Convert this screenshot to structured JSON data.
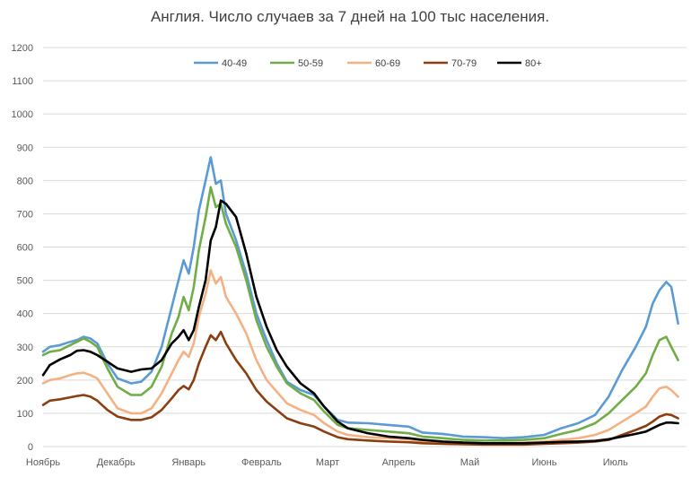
{
  "chart_data": {
    "type": "line",
    "title": "Англия. Число случаев за 7 дней на 100 тыс населения.",
    "xlabel": "",
    "ylabel": "",
    "ylim": [
      0,
      1200
    ],
    "yticks": [
      0,
      100,
      200,
      300,
      400,
      500,
      600,
      700,
      800,
      900,
      1000,
      1100,
      1200
    ],
    "grid": true,
    "legend_position": "top",
    "x_range": [
      0,
      19
    ],
    "months": [
      {
        "label": "Ноябрь",
        "x": 0
      },
      {
        "label": "Декабрь",
        "x": 2.15
      },
      {
        "label": "Январь",
        "x": 4.3
      },
      {
        "label": "Февраль",
        "x": 6.45
      },
      {
        "label": "Март",
        "x": 8.4
      },
      {
        "label": "Апрель",
        "x": 10.5
      },
      {
        "label": "Май",
        "x": 12.6
      },
      {
        "label": "Июнь",
        "x": 14.8
      },
      {
        "label": "Июль",
        "x": 16.9
      }
    ],
    "series": [
      {
        "name": "40-49",
        "color": "#5b9bd5",
        "points": [
          [
            0,
            285
          ],
          [
            0.2,
            300
          ],
          [
            0.5,
            305
          ],
          [
            0.8,
            315
          ],
          [
            1.0,
            320
          ],
          [
            1.2,
            330
          ],
          [
            1.4,
            325
          ],
          [
            1.6,
            310
          ],
          [
            1.9,
            250
          ],
          [
            2.2,
            205
          ],
          [
            2.6,
            190
          ],
          [
            2.9,
            195
          ],
          [
            3.2,
            225
          ],
          [
            3.5,
            300
          ],
          [
            3.8,
            420
          ],
          [
            4.0,
            500
          ],
          [
            4.15,
            560
          ],
          [
            4.3,
            520
          ],
          [
            4.45,
            600
          ],
          [
            4.6,
            710
          ],
          [
            4.8,
            800
          ],
          [
            4.95,
            870
          ],
          [
            5.1,
            790
          ],
          [
            5.25,
            800
          ],
          [
            5.4,
            700
          ],
          [
            5.7,
            620
          ],
          [
            6.0,
            520
          ],
          [
            6.3,
            400
          ],
          [
            6.6,
            320
          ],
          [
            6.9,
            250
          ],
          [
            7.2,
            195
          ],
          [
            7.6,
            170
          ],
          [
            8.0,
            155
          ],
          [
            8.3,
            120
          ],
          [
            8.7,
            80
          ],
          [
            9.0,
            72
          ],
          [
            9.6,
            70
          ],
          [
            10.2,
            65
          ],
          [
            10.8,
            60
          ],
          [
            11.2,
            42
          ],
          [
            11.8,
            38
          ],
          [
            12.4,
            30
          ],
          [
            13.0,
            28
          ],
          [
            13.6,
            25
          ],
          [
            14.2,
            28
          ],
          [
            14.8,
            35
          ],
          [
            15.3,
            55
          ],
          [
            15.8,
            70
          ],
          [
            16.3,
            95
          ],
          [
            16.7,
            150
          ],
          [
            17.1,
            230
          ],
          [
            17.5,
            300
          ],
          [
            17.8,
            360
          ],
          [
            18.0,
            430
          ],
          [
            18.2,
            470
          ],
          [
            18.4,
            495
          ],
          [
            18.55,
            480
          ],
          [
            18.75,
            370
          ]
        ]
      },
      {
        "name": "50-59",
        "color": "#70ad47",
        "points": [
          [
            0,
            275
          ],
          [
            0.2,
            285
          ],
          [
            0.5,
            290
          ],
          [
            0.8,
            305
          ],
          [
            1.0,
            315
          ],
          [
            1.2,
            325
          ],
          [
            1.4,
            315
          ],
          [
            1.6,
            300
          ],
          [
            1.9,
            235
          ],
          [
            2.2,
            180
          ],
          [
            2.6,
            155
          ],
          [
            2.9,
            155
          ],
          [
            3.2,
            180
          ],
          [
            3.5,
            240
          ],
          [
            3.8,
            340
          ],
          [
            4.0,
            390
          ],
          [
            4.15,
            450
          ],
          [
            4.3,
            410
          ],
          [
            4.45,
            480
          ],
          [
            4.6,
            590
          ],
          [
            4.8,
            690
          ],
          [
            4.95,
            780
          ],
          [
            5.1,
            720
          ],
          [
            5.25,
            730
          ],
          [
            5.4,
            670
          ],
          [
            5.7,
            600
          ],
          [
            6.0,
            500
          ],
          [
            6.3,
            380
          ],
          [
            6.6,
            300
          ],
          [
            6.9,
            240
          ],
          [
            7.2,
            190
          ],
          [
            7.6,
            160
          ],
          [
            8.0,
            140
          ],
          [
            8.3,
            105
          ],
          [
            8.7,
            65
          ],
          [
            9.0,
            55
          ],
          [
            9.6,
            50
          ],
          [
            10.2,
            45
          ],
          [
            10.8,
            40
          ],
          [
            11.2,
            30
          ],
          [
            11.8,
            25
          ],
          [
            12.4,
            20
          ],
          [
            13.0,
            18
          ],
          [
            13.6,
            18
          ],
          [
            14.2,
            20
          ],
          [
            14.8,
            25
          ],
          [
            15.3,
            38
          ],
          [
            15.8,
            50
          ],
          [
            16.3,
            70
          ],
          [
            16.7,
            100
          ],
          [
            17.1,
            140
          ],
          [
            17.5,
            180
          ],
          [
            17.8,
            220
          ],
          [
            18.0,
            275
          ],
          [
            18.2,
            320
          ],
          [
            18.4,
            330
          ],
          [
            18.55,
            300
          ],
          [
            18.75,
            260
          ]
        ]
      },
      {
        "name": "60-69",
        "color": "#f4b183",
        "points": [
          [
            0,
            190
          ],
          [
            0.2,
            200
          ],
          [
            0.5,
            205
          ],
          [
            0.8,
            215
          ],
          [
            1.0,
            220
          ],
          [
            1.2,
            222
          ],
          [
            1.4,
            215
          ],
          [
            1.6,
            205
          ],
          [
            1.9,
            160
          ],
          [
            2.2,
            115
          ],
          [
            2.6,
            100
          ],
          [
            2.9,
            100
          ],
          [
            3.2,
            115
          ],
          [
            3.5,
            160
          ],
          [
            3.8,
            220
          ],
          [
            4.0,
            260
          ],
          [
            4.15,
            285
          ],
          [
            4.3,
            270
          ],
          [
            4.45,
            310
          ],
          [
            4.6,
            390
          ],
          [
            4.8,
            460
          ],
          [
            4.95,
            530
          ],
          [
            5.1,
            490
          ],
          [
            5.25,
            510
          ],
          [
            5.4,
            450
          ],
          [
            5.7,
            400
          ],
          [
            6.0,
            340
          ],
          [
            6.3,
            260
          ],
          [
            6.6,
            200
          ],
          [
            6.9,
            165
          ],
          [
            7.2,
            130
          ],
          [
            7.6,
            110
          ],
          [
            8.0,
            95
          ],
          [
            8.3,
            70
          ],
          [
            8.7,
            45
          ],
          [
            9.0,
            35
          ],
          [
            9.6,
            28
          ],
          [
            10.2,
            25
          ],
          [
            10.8,
            22
          ],
          [
            11.2,
            15
          ],
          [
            11.8,
            12
          ],
          [
            12.4,
            12
          ],
          [
            13.0,
            10
          ],
          [
            13.6,
            10
          ],
          [
            14.2,
            12
          ],
          [
            14.8,
            15
          ],
          [
            15.3,
            20
          ],
          [
            15.8,
            25
          ],
          [
            16.3,
            35
          ],
          [
            16.7,
            50
          ],
          [
            17.1,
            75
          ],
          [
            17.5,
            100
          ],
          [
            17.8,
            120
          ],
          [
            18.0,
            150
          ],
          [
            18.2,
            175
          ],
          [
            18.4,
            180
          ],
          [
            18.55,
            170
          ],
          [
            18.75,
            150
          ]
        ]
      },
      {
        "name": "70-79",
        "color": "#8b3e10",
        "points": [
          [
            0,
            125
          ],
          [
            0.2,
            138
          ],
          [
            0.5,
            142
          ],
          [
            0.8,
            148
          ],
          [
            1.0,
            152
          ],
          [
            1.2,
            155
          ],
          [
            1.4,
            150
          ],
          [
            1.6,
            138
          ],
          [
            1.9,
            110
          ],
          [
            2.2,
            90
          ],
          [
            2.6,
            80
          ],
          [
            2.9,
            80
          ],
          [
            3.2,
            88
          ],
          [
            3.5,
            110
          ],
          [
            3.8,
            145
          ],
          [
            4.0,
            170
          ],
          [
            4.15,
            182
          ],
          [
            4.3,
            172
          ],
          [
            4.45,
            200
          ],
          [
            4.6,
            250
          ],
          [
            4.8,
            300
          ],
          [
            4.95,
            335
          ],
          [
            5.1,
            320
          ],
          [
            5.25,
            345
          ],
          [
            5.4,
            310
          ],
          [
            5.7,
            260
          ],
          [
            6.0,
            220
          ],
          [
            6.3,
            170
          ],
          [
            6.6,
            135
          ],
          [
            6.9,
            110
          ],
          [
            7.2,
            85
          ],
          [
            7.6,
            70
          ],
          [
            8.0,
            60
          ],
          [
            8.3,
            45
          ],
          [
            8.7,
            28
          ],
          [
            9.0,
            22
          ],
          [
            9.6,
            18
          ],
          [
            10.2,
            15
          ],
          [
            10.8,
            13
          ],
          [
            11.2,
            10
          ],
          [
            11.8,
            8
          ],
          [
            12.4,
            7
          ],
          [
            13.0,
            6
          ],
          [
            13.6,
            6
          ],
          [
            14.2,
            6
          ],
          [
            14.8,
            8
          ],
          [
            15.3,
            10
          ],
          [
            15.8,
            12
          ],
          [
            16.3,
            15
          ],
          [
            16.7,
            20
          ],
          [
            17.1,
            35
          ],
          [
            17.5,
            50
          ],
          [
            17.8,
            62
          ],
          [
            18.0,
            75
          ],
          [
            18.2,
            90
          ],
          [
            18.4,
            97
          ],
          [
            18.55,
            95
          ],
          [
            18.75,
            85
          ]
        ]
      },
      {
        "name": "80+",
        "color": "#000000",
        "points": [
          [
            0,
            215
          ],
          [
            0.2,
            245
          ],
          [
            0.5,
            262
          ],
          [
            0.8,
            275
          ],
          [
            1.0,
            288
          ],
          [
            1.2,
            290
          ],
          [
            1.4,
            285
          ],
          [
            1.6,
            275
          ],
          [
            1.9,
            255
          ],
          [
            2.2,
            235
          ],
          [
            2.6,
            225
          ],
          [
            2.9,
            232
          ],
          [
            3.2,
            235
          ],
          [
            3.5,
            260
          ],
          [
            3.8,
            310
          ],
          [
            4.0,
            330
          ],
          [
            4.15,
            350
          ],
          [
            4.3,
            320
          ],
          [
            4.45,
            350
          ],
          [
            4.6,
            420
          ],
          [
            4.8,
            500
          ],
          [
            4.95,
            620
          ],
          [
            5.1,
            660
          ],
          [
            5.25,
            740
          ],
          [
            5.4,
            730
          ],
          [
            5.7,
            690
          ],
          [
            6.0,
            580
          ],
          [
            6.3,
            450
          ],
          [
            6.6,
            360
          ],
          [
            6.9,
            290
          ],
          [
            7.2,
            240
          ],
          [
            7.6,
            190
          ],
          [
            8.0,
            160
          ],
          [
            8.3,
            120
          ],
          [
            8.7,
            75
          ],
          [
            9.0,
            55
          ],
          [
            9.6,
            40
          ],
          [
            10.2,
            30
          ],
          [
            10.8,
            25
          ],
          [
            11.2,
            20
          ],
          [
            11.8,
            15
          ],
          [
            12.4,
            12
          ],
          [
            13.0,
            10
          ],
          [
            13.6,
            10
          ],
          [
            14.2,
            10
          ],
          [
            14.8,
            12
          ],
          [
            15.3,
            14
          ],
          [
            15.8,
            15
          ],
          [
            16.3,
            17
          ],
          [
            16.7,
            22
          ],
          [
            17.1,
            30
          ],
          [
            17.5,
            38
          ],
          [
            17.8,
            45
          ],
          [
            18.0,
            55
          ],
          [
            18.2,
            65
          ],
          [
            18.4,
            72
          ],
          [
            18.55,
            72
          ],
          [
            18.75,
            70
          ]
        ]
      }
    ]
  }
}
